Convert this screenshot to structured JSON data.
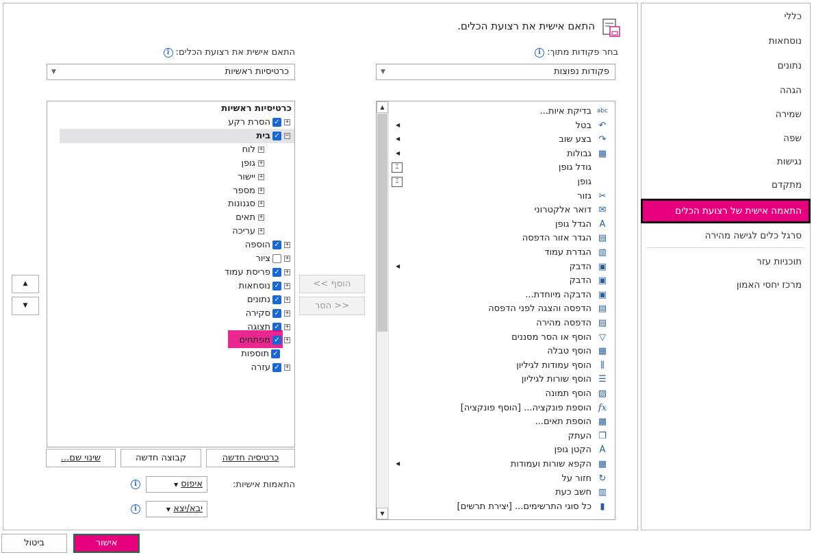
{
  "sidebar": {
    "items": [
      {
        "label": "כללי"
      },
      {
        "label": "נוסחאות"
      },
      {
        "label": "נתונים"
      },
      {
        "label": "הגהה"
      },
      {
        "label": "שמירה"
      },
      {
        "label": "שפה"
      },
      {
        "label": "נגישות"
      },
      {
        "label": "מתקדם"
      },
      {
        "label": "התאמה אישית של רצועת הכלים",
        "selected": true
      },
      {
        "label": "סרגל כלים לגישה מהירה"
      },
      {
        "label": "תוכניות עזר"
      },
      {
        "label": "מרכז יחסי האמון"
      }
    ]
  },
  "main": {
    "title": "התאם אישית את רצועת הכלים.",
    "choose_label": "בחר פקודות מתוך:",
    "choose_value": "פקודות נפוצות",
    "customize_label": "התאם אישית את רצועת הכלים:",
    "customize_value": "כרטיסיות ראשיות",
    "commands": [
      {
        "label": "בדיקת איות...",
        "icon": "abc"
      },
      {
        "label": "בטל",
        "icon": "↶",
        "arrow": true
      },
      {
        "label": "בצע שוב",
        "icon": "↷",
        "arrow": true
      },
      {
        "label": "גבולות",
        "icon": "▦",
        "arrow": true
      },
      {
        "label": "גודל גופן",
        "icon": "",
        "field": true
      },
      {
        "label": "גופן",
        "icon": "",
        "field": true
      },
      {
        "label": "גזור",
        "icon": "✂"
      },
      {
        "label": "דואר אלקטרוני",
        "icon": "✉"
      },
      {
        "label": "הגדל גופן",
        "icon": "A"
      },
      {
        "label": "הגדר אזור הדפסה",
        "icon": "▤"
      },
      {
        "label": "הגדרת עמוד",
        "icon": "▥"
      },
      {
        "label": "הדבק",
        "icon": "▣",
        "arrow": true
      },
      {
        "label": "הדבק",
        "icon": "▣"
      },
      {
        "label": "הדבקה מיוחדת...",
        "icon": "▣"
      },
      {
        "label": "הדפסה והצגה לפני הדפסה",
        "icon": "▤"
      },
      {
        "label": "הדפסה מהירה",
        "icon": "▤"
      },
      {
        "label": "הוסף או הסר מסננים",
        "icon": "▽"
      },
      {
        "label": "הוסף טבלה",
        "icon": "▦"
      },
      {
        "label": "הוסף עמודות לגיליון",
        "icon": "⫼"
      },
      {
        "label": "הוסף שורות לגיליון",
        "icon": "☰"
      },
      {
        "label": "הוסף תמונה",
        "icon": "▨"
      },
      {
        "label": "הוספת פונקציה... [הוסף פונקציה]",
        "icon": "fx"
      },
      {
        "label": "הוספת תאים...",
        "icon": "▦"
      },
      {
        "label": "העתק",
        "icon": "❐"
      },
      {
        "label": "הקטן גופן",
        "icon": "A"
      },
      {
        "label": "הקפא שורות ועמודות",
        "icon": "▦",
        "arrow": true
      },
      {
        "label": "חזור על",
        "icon": "↻"
      },
      {
        "label": "חשב כעת",
        "icon": "▥"
      },
      {
        "label": "כל סוגי התרשימים... [יצירת תרשים]",
        "icon": "▮"
      }
    ],
    "add_label": "הוסף >>",
    "remove_label": "<< הסר",
    "tree_header": "כרטיסיות ראשיות",
    "tree": [
      {
        "label": "הסרת רקע",
        "level": 0,
        "pm": "⊞",
        "check": "on"
      },
      {
        "label": "בית",
        "level": 0,
        "pm": "⊟",
        "check": "on",
        "bold": true,
        "selected": true
      },
      {
        "label": "לוח",
        "level": 1,
        "pm": "⊞"
      },
      {
        "label": "גופן",
        "level": 1,
        "pm": "⊞"
      },
      {
        "label": "יישור",
        "level": 1,
        "pm": "⊞"
      },
      {
        "label": "מספר",
        "level": 1,
        "pm": "⊞"
      },
      {
        "label": "סגנונות",
        "level": 1,
        "pm": "⊞"
      },
      {
        "label": "תאים",
        "level": 1,
        "pm": "⊞"
      },
      {
        "label": "עריכה",
        "level": 1,
        "pm": "⊞"
      },
      {
        "label": "הוספה",
        "level": 0,
        "pm": "⊞",
        "check": "on"
      },
      {
        "label": "ציור",
        "level": 0,
        "pm": "⊞",
        "check": "off"
      },
      {
        "label": "פריסת עמוד",
        "level": 0,
        "pm": "⊞",
        "check": "on"
      },
      {
        "label": "נוסחאות",
        "level": 0,
        "pm": "⊞",
        "check": "on"
      },
      {
        "label": "נתונים",
        "level": 0,
        "pm": "⊞",
        "check": "on"
      },
      {
        "label": "סקירה",
        "level": 0,
        "pm": "⊞",
        "check": "on"
      },
      {
        "label": "תצוגה",
        "level": 0,
        "pm": "⊞",
        "check": "on"
      },
      {
        "label": "מפתחים",
        "level": 0,
        "pm": "⊞",
        "check": "on",
        "highlight": true
      },
      {
        "label": "תוספות",
        "level": 0,
        "pm": "",
        "check": "on"
      },
      {
        "label": "עזרה",
        "level": 0,
        "pm": "⊞",
        "check": "on"
      }
    ],
    "new_tab": "כרטיסיה חדשה",
    "new_group": "קבוצה חדשה",
    "rename": "שינוי שם...",
    "customizations_label": "התאמות אישיות:",
    "reset_label": "איפוס",
    "import_export_label": "יבא/יצא"
  },
  "footer": {
    "ok_label": "אישור",
    "cancel_label": "ביטול"
  },
  "colors": {
    "highlight": "#e6007e",
    "checkbox": "#1967d2",
    "selected_row": "#e3e3e8"
  }
}
